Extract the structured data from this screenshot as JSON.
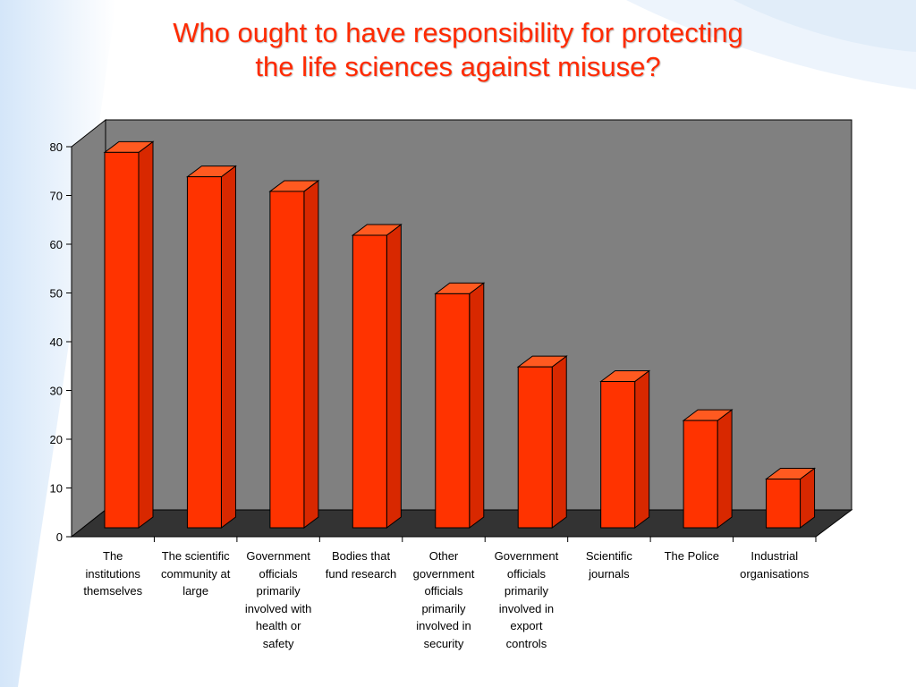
{
  "title_lines": [
    "Who ought to have responsibility for protecting",
    "the life sciences against misuse?"
  ],
  "colors": {
    "bar_front": "#ff3300",
    "bar_side": "#d82800",
    "bar_top": "#ff5a20",
    "back_wall": "#808080",
    "floor": "#333333",
    "title": "#ff2a00"
  },
  "chart_data": {
    "type": "bar",
    "categories": [
      "The institutions themselves",
      "The scientific community at large",
      "Government officials primarily involved with health or safety",
      "Bodies that fund research",
      "Other government officials primarily involved in security",
      "Government officials primarily involved in export controls",
      "Scientific journals",
      "The Police",
      "Industrial organisations"
    ],
    "category_label_lines": [
      [
        "The",
        "institutions",
        "themselves"
      ],
      [
        "The scientific",
        "community at",
        "large"
      ],
      [
        "Government",
        "officials",
        "primarily",
        "involved with",
        "health or",
        "safety"
      ],
      [
        "Bodies that",
        "fund research"
      ],
      [
        "Other",
        "government",
        "officials",
        "primarily",
        "involved in",
        "security"
      ],
      [
        "Government",
        "officials",
        "primarily",
        "involved in",
        "export",
        "controls"
      ],
      [
        "Scientific",
        "journals"
      ],
      [
        "The Police"
      ],
      [
        "Industrial",
        "organisations"
      ]
    ],
    "values": [
      77,
      72,
      69,
      60,
      48,
      33,
      30,
      22,
      10
    ],
    "yticks": [
      "0",
      "10",
      "20",
      "30",
      "40",
      "50",
      "60",
      "70",
      "80"
    ],
    "ylim": [
      0,
      80
    ],
    "grid": false,
    "legend": "none",
    "style": "3d"
  }
}
